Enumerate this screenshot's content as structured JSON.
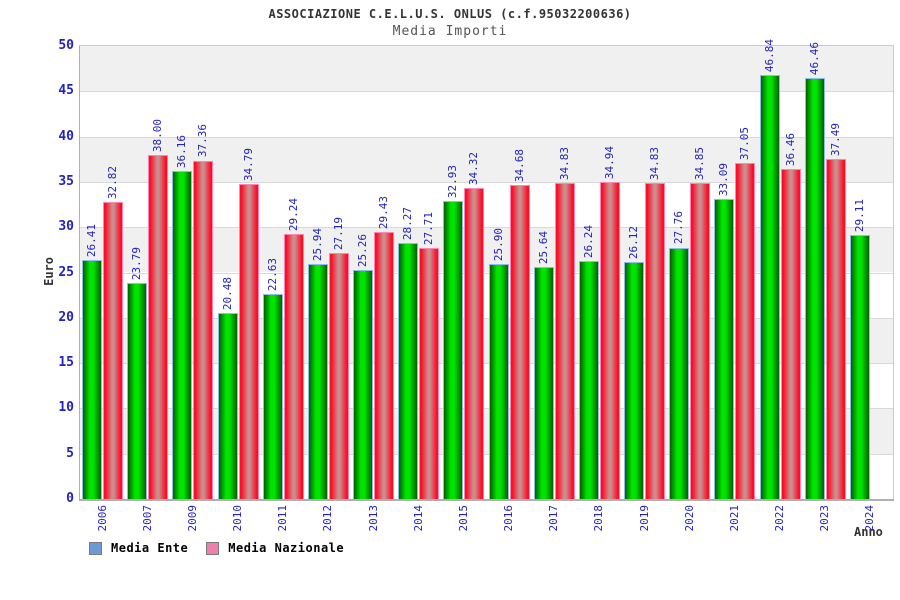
{
  "header": {
    "title": "ASSOCIAZIONE C.E.L.U.S. ONLUS (c.f.95032200636)",
    "subtitle": "Media Importi"
  },
  "chart_data": {
    "type": "bar",
    "title": "ASSOCIAZIONE C.E.L.U.S. ONLUS (c.f.95032200636)",
    "subtitle": "Media Importi",
    "xlabel": "Anno",
    "ylabel": "Euro",
    "ylim": [
      0,
      50
    ],
    "ytick_step": 5,
    "yticks": [
      0,
      5,
      10,
      15,
      20,
      25,
      30,
      35,
      40,
      45,
      50
    ],
    "grid": "alternating-horizontal-bands",
    "value_labels": "rotated-90-above-bars",
    "legend_position": "bottom-left",
    "categories": [
      "2006",
      "2007",
      "2009",
      "2010",
      "2011",
      "2012",
      "2013",
      "2014",
      "2015",
      "2016",
      "2017",
      "2018",
      "2019",
      "2020",
      "2021",
      "2022",
      "2023",
      "2024"
    ],
    "series": [
      {
        "name": "Media Ente",
        "swatch_color": "#6b9bd2",
        "bar_style": "green-gradient",
        "values": [
          26.41,
          23.79,
          36.16,
          20.48,
          22.63,
          25.94,
          25.26,
          28.27,
          32.93,
          25.9,
          25.64,
          26.24,
          26.12,
          27.76,
          33.09,
          46.84,
          46.46,
          29.11
        ]
      },
      {
        "name": "Media Nazionale",
        "swatch_color": "#ee7fae",
        "bar_style": "red-gradient",
        "values": [
          32.82,
          38.0,
          37.36,
          34.79,
          29.24,
          27.19,
          29.43,
          27.71,
          34.32,
          34.68,
          34.83,
          34.94,
          34.83,
          34.85,
          37.05,
          36.46,
          37.49,
          null
        ]
      }
    ]
  },
  "colors": {
    "label_blue": "#2323bb",
    "band_gray": "#f0f0f0",
    "band_white": "#ffffff",
    "grid_line": "#d9d9d9",
    "axis_line": "#b0b0b0",
    "plot_border": "#cccccc",
    "title_text": "#333333",
    "subtitle_text": "#555555",
    "green_bar_edge": "#016001",
    "green_bar_center": "#00e400",
    "green_bar_border": "#8fbde8",
    "red_bar_edge": "#fb0f28",
    "red_bar_center": "#cd8d8d",
    "red_bar_border": "#ff85b5"
  }
}
